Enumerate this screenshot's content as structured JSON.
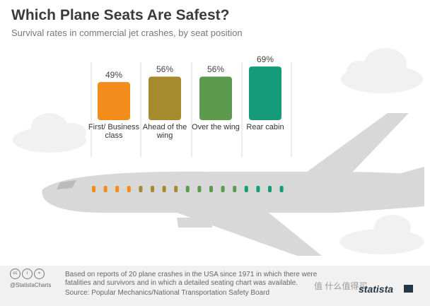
{
  "title": "Which Plane Seats Are Safest?",
  "subtitle": "Survival rates in commercial jet crashes, by seat position",
  "chart_data": {
    "type": "bar",
    "title": "Which Plane Seats Are Safest?",
    "subtitle": "Survival rates in commercial jet crashes, by seat position",
    "categories": [
      "First/ Business class",
      "Ahead of the wing",
      "Over the wing",
      "Rear cabin"
    ],
    "values": [
      49,
      56,
      56,
      69
    ],
    "value_labels": [
      "49%",
      "56%",
      "56%",
      "69%"
    ],
    "unit": "%",
    "colors": [
      "#f28c1a",
      "#a68a2e",
      "#5c9a4d",
      "#169b7a"
    ]
  },
  "footer": {
    "note": "Based on reports of 20 plane crashes in the USA since 1971 in which there were fatalities and survivors and in which a detailed seating chart was available.",
    "source": "Source: Popular Mechanics/National Transportation Safety Board",
    "handle": "@StatistaCharts",
    "brand": "statista",
    "watermark": "值 什么值得买",
    "license_icons": [
      "cc",
      "i",
      "="
    ]
  },
  "colors": {
    "plane": "#d9d9d9",
    "cloud": "#f2f2f2",
    "title": "#3b3b3b"
  }
}
